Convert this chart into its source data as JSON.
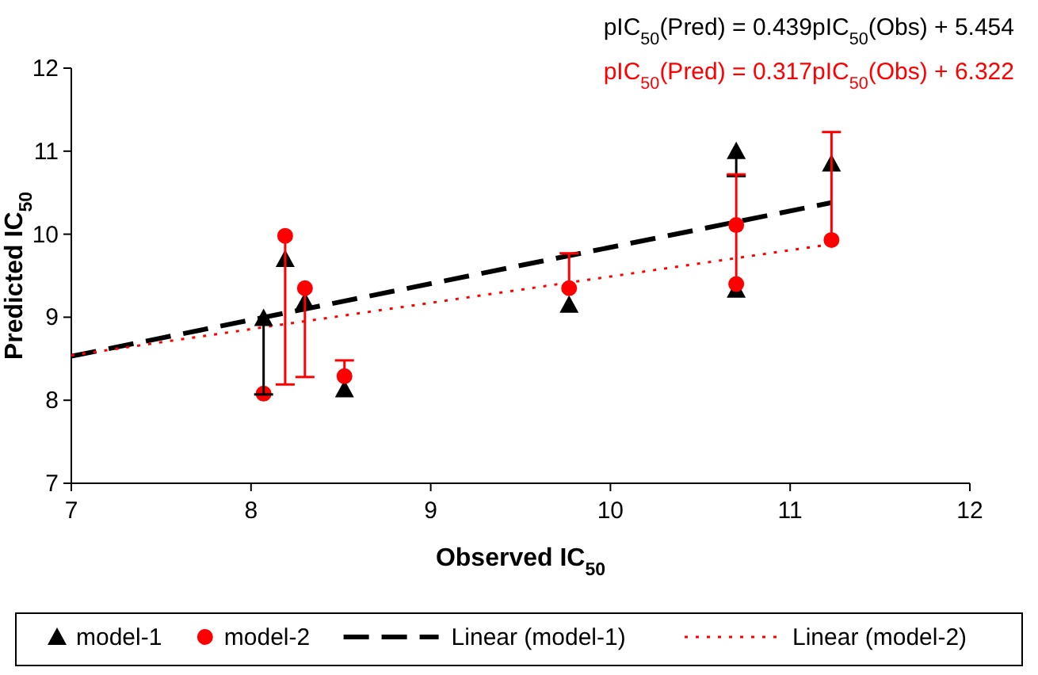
{
  "chart_data": {
    "type": "scatter",
    "xlabel": "Observed IC$_{50}$",
    "ylabel": "Predicted IC$_{50}$",
    "xlim": [
      7,
      12
    ],
    "xticks": [
      7,
      8,
      9,
      10,
      11,
      12
    ],
    "ylim": [
      7,
      12
    ],
    "yticks": [
      7,
      8,
      9,
      10,
      11,
      12
    ],
    "grid": false,
    "legend": "bottom",
    "annotations": [
      "pIC$_{50}$(Pred) = 0.439pIC$_{50}$(Obs) + 5.454",
      "pIC$_{50}$(Pred) = 0.317pIC$_{50}$(Obs) + 6.322"
    ],
    "series": [
      {
        "name": "model-1",
        "marker": "triangle",
        "color": "#000000",
        "x": [
          8.07,
          8.19,
          8.3,
          8.52,
          9.77,
          10.7,
          10.7,
          11.23
        ],
        "values": [
          8.99,
          9.7,
          9.19,
          8.13,
          9.15,
          11.0,
          9.33,
          10.85
        ],
        "errors": [
          [
            8.07,
            8.99
          ],
          null,
          null,
          null,
          null,
          [
            10.7,
            11.0
          ],
          null,
          null
        ]
      },
      {
        "name": "model-2",
        "marker": "circle",
        "color": "#ff0000",
        "x": [
          8.07,
          8.19,
          8.3,
          8.52,
          9.77,
          10.7,
          10.7,
          11.23
        ],
        "values": [
          8.08,
          9.98,
          9.35,
          8.29,
          9.35,
          10.11,
          9.4,
          9.93
        ],
        "errors": [
          null,
          [
            8.19,
            9.98
          ],
          [
            8.28,
            9.35
          ],
          [
            8.29,
            8.48
          ],
          [
            9.35,
            9.77
          ],
          null,
          [
            9.4,
            10.72
          ],
          [
            9.93,
            11.23
          ]
        ]
      },
      {
        "name": "Linear (model-1)",
        "type": "line",
        "line_style": "dashed",
        "color": "#000000",
        "x": [
          7,
          11.23
        ],
        "values": [
          8.53,
          10.38
        ]
      },
      {
        "name": "Linear (model-2)",
        "type": "line",
        "line_style": "dotted",
        "color": "#ff0000",
        "x": [
          7,
          11.23
        ],
        "values": [
          8.54,
          9.88
        ]
      }
    ]
  }
}
